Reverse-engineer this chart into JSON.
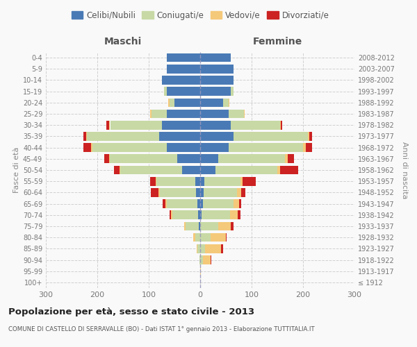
{
  "age_groups": [
    "100+",
    "95-99",
    "90-94",
    "85-89",
    "80-84",
    "75-79",
    "70-74",
    "65-69",
    "60-64",
    "55-59",
    "50-54",
    "45-49",
    "40-44",
    "35-39",
    "30-34",
    "25-29",
    "20-24",
    "15-19",
    "10-14",
    "5-9",
    "0-4"
  ],
  "birth_years": [
    "≤ 1912",
    "1913-1917",
    "1918-1922",
    "1923-1927",
    "1928-1932",
    "1933-1937",
    "1938-1942",
    "1943-1947",
    "1948-1952",
    "1953-1957",
    "1958-1962",
    "1963-1967",
    "1968-1972",
    "1973-1977",
    "1978-1982",
    "1983-1987",
    "1988-1992",
    "1993-1997",
    "1998-2002",
    "2003-2007",
    "2008-2012"
  ],
  "maschi": {
    "celibi": [
      0,
      0,
      0,
      0,
      0,
      3,
      4,
      5,
      8,
      10,
      35,
      45,
      65,
      80,
      75,
      65,
      50,
      65,
      75,
      65,
      65
    ],
    "coniugati": [
      0,
      0,
      2,
      5,
      10,
      25,
      50,
      60,
      70,
      75,
      120,
      130,
      145,
      140,
      100,
      30,
      10,
      5,
      0,
      0,
      0
    ],
    "vedovi": [
      0,
      0,
      0,
      2,
      3,
      3,
      3,
      3,
      3,
      2,
      2,
      2,
      2,
      2,
      2,
      2,
      2,
      0,
      0,
      0,
      0
    ],
    "divorziati": [
      0,
      0,
      0,
      0,
      0,
      0,
      2,
      5,
      15,
      10,
      10,
      10,
      15,
      5,
      5,
      0,
      0,
      0,
      0,
      0,
      0
    ]
  },
  "femmine": {
    "nubili": [
      0,
      0,
      0,
      0,
      0,
      0,
      3,
      5,
      7,
      8,
      30,
      35,
      55,
      65,
      60,
      55,
      45,
      60,
      65,
      65,
      60
    ],
    "coniugate": [
      0,
      0,
      5,
      10,
      20,
      35,
      55,
      60,
      65,
      70,
      120,
      130,
      145,
      145,
      95,
      30,
      10,
      5,
      0,
      0,
      0
    ],
    "vedove": [
      0,
      2,
      15,
      30,
      30,
      25,
      15,
      10,
      8,
      5,
      5,
      5,
      5,
      2,
      2,
      2,
      2,
      0,
      0,
      0,
      0
    ],
    "divorziate": [
      0,
      0,
      2,
      5,
      2,
      5,
      5,
      5,
      8,
      25,
      35,
      12,
      12,
      5,
      2,
      0,
      0,
      0,
      0,
      0,
      0
    ]
  },
  "colors": {
    "celibi_nubili": "#4a7ab5",
    "coniugati": "#c8d9a5",
    "vedovi": "#f5c97a",
    "divorziati": "#cc2222"
  },
  "xlim": 300,
  "title": "Popolazione per età, sesso e stato civile - 2013",
  "subtitle": "COMUNE DI CASTELLO DI SERRAVALLE (BO) - Dati ISTAT 1° gennaio 2013 - Elaborazione TUTTITALIA.IT",
  "ylabel_left": "Fasce di età",
  "ylabel_right": "Anni di nascita",
  "xlabel_left": "Maschi",
  "xlabel_right": "Femmine",
  "bg_color": "#f9f9f9",
  "grid_color": "#cccccc"
}
